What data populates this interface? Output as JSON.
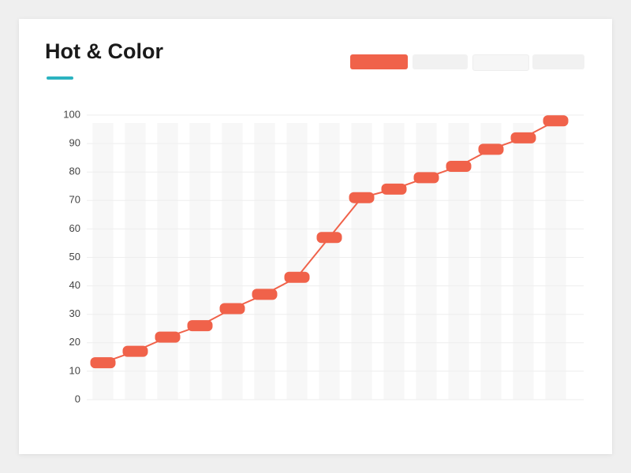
{
  "chart_data": {
    "type": "line",
    "title": "Hot & Color",
    "categories": [
      null,
      null,
      null,
      null,
      null,
      null,
      null,
      null,
      null,
      null,
      null,
      null,
      null,
      null,
      null
    ],
    "values": [
      13,
      17,
      22,
      26,
      32,
      37,
      43,
      57,
      71,
      74,
      78,
      82,
      88,
      92,
      98
    ],
    "color": "#f0624a",
    "ylim": [
      0,
      100
    ],
    "yticks": [
      0,
      10,
      20,
      30,
      40,
      50,
      60,
      70,
      80,
      90,
      100
    ],
    "grid": true
  }
}
